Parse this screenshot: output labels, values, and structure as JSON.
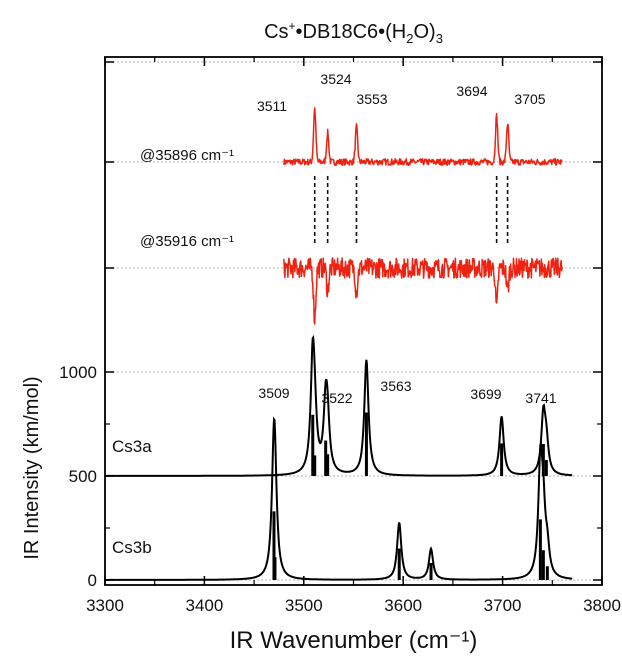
{
  "chart_data": {
    "type": "line",
    "title": {
      "prefix": "Cs",
      "sup": "+",
      "middle": "•DB18C6•(H",
      "sub": "2",
      "suffix": "O)",
      "sub2": "3"
    },
    "xlabel": "IR Wavenumber (cm⁻¹)",
    "ylabel": "IR Intensity (km/mol)",
    "xlim": [
      3300,
      3800
    ],
    "xticks": [
      3300,
      3400,
      3500,
      3600,
      3700,
      3800
    ],
    "yticks": [
      0,
      500,
      1000
    ],
    "grid": true,
    "experimental": [
      {
        "label": "@35896 cm⁻¹",
        "color": "#ee2211",
        "x_range": [
          3480,
          3760
        ],
        "noise_level": 0.35,
        "peaks": [
          {
            "x": 3511,
            "label": "3511",
            "amp": 5.8
          },
          {
            "x": 3524,
            "label": "3524",
            "amp": 3.2
          },
          {
            "x": 3553,
            "label": "3553",
            "amp": 3.8
          },
          {
            "x": 3694,
            "label": "3694",
            "amp": 5.0
          },
          {
            "x": 3705,
            "label": "3705",
            "amp": 4.2
          }
        ]
      },
      {
        "label": "@35916 cm⁻¹",
        "color": "#ee2211",
        "x_range": [
          3480,
          3760
        ],
        "noise_level": 1.1,
        "peaks": [
          {
            "x": 3511,
            "amp": -5.5
          },
          {
            "x": 3524,
            "amp": -2.5
          },
          {
            "x": 3553,
            "amp": -2.5
          },
          {
            "x": 3694,
            "amp": -4.5
          },
          {
            "x": 3705,
            "amp": -2.5
          }
        ]
      }
    ],
    "dashed_markers": [
      3511,
      3524,
      3553,
      3694,
      3705
    ],
    "calculated": [
      {
        "name": "Cs3a",
        "baseline": 500,
        "x_range": [
          3300,
          3770
        ],
        "fwhm": 5,
        "sticks": [
          {
            "x": 3509,
            "intensity": 535
          },
          {
            "x": 3511,
            "intensity": 180
          },
          {
            "x": 3522,
            "intensity": 310
          },
          {
            "x": 3524,
            "intensity": 190
          },
          {
            "x": 3563,
            "intensity": 555
          },
          {
            "x": 3699,
            "intensity": 285
          },
          {
            "x": 3741,
            "intensity": 280
          },
          {
            "x": 3744,
            "intensity": 140
          }
        ],
        "peak_labels": [
          {
            "x": 3509,
            "label": "3509"
          },
          {
            "x": 3522,
            "label": "3522"
          },
          {
            "x": 3563,
            "label": "3563"
          },
          {
            "x": 3699,
            "label": "3699"
          },
          {
            "x": 3741,
            "label": "3741"
          }
        ]
      },
      {
        "name": "Cs3b",
        "baseline": 0,
        "x_range": [
          3300,
          3770
        ],
        "fwhm": 5,
        "sticks": [
          {
            "x": 3470,
            "intensity": 600
          },
          {
            "x": 3471,
            "intensity": 200
          },
          {
            "x": 3596,
            "intensity": 275
          },
          {
            "x": 3628,
            "intensity": 148
          },
          {
            "x": 3738,
            "intensity": 530
          },
          {
            "x": 3741,
            "intensity": 260
          },
          {
            "x": 3745,
            "intensity": 120
          }
        ]
      }
    ]
  }
}
